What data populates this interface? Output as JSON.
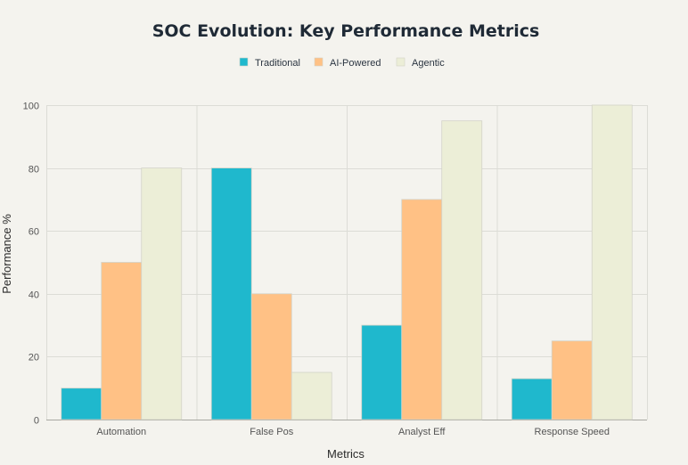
{
  "chart_data": {
    "type": "bar",
    "title": "SOC Evolution: Key Performance Metrics",
    "xlabel": "Metrics",
    "ylabel": "Performance %",
    "categories": [
      "Automation",
      "False Pos",
      "Analyst Eff",
      "Response Speed"
    ],
    "series": [
      {
        "name": "Traditional",
        "values": [
          10,
          80,
          30,
          13
        ],
        "color": "#1fb8cd"
      },
      {
        "name": "AI-Powered",
        "values": [
          50,
          40,
          70,
          25
        ],
        "color": "#ffc185"
      },
      {
        "name": "Agentic",
        "values": [
          80,
          15,
          95,
          100
        ],
        "color": "#eceed7"
      }
    ],
    "ylim": [
      0,
      100
    ],
    "yticks": [
      0,
      20,
      40,
      60,
      80,
      100
    ],
    "grid": true,
    "legend_position": "top-center"
  }
}
